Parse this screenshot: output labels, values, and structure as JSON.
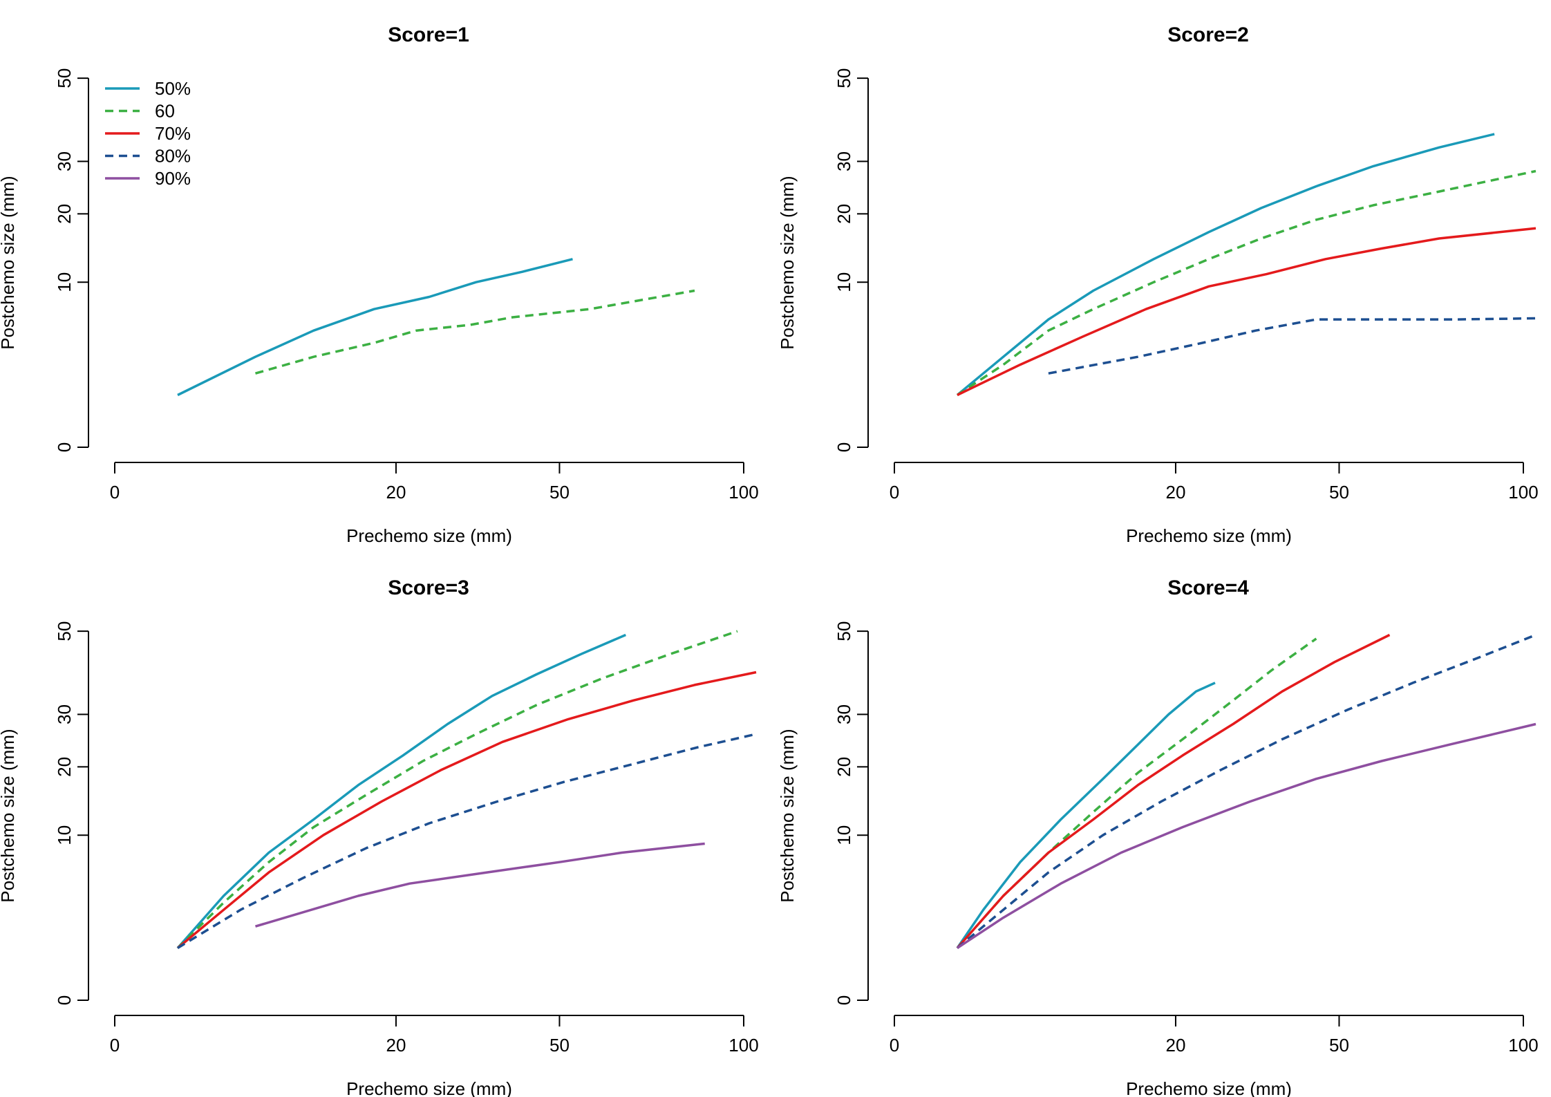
{
  "chart_data": [
    {
      "type": "line",
      "title": "Score=1",
      "xlabel": "Prechemo size (mm)",
      "ylabel": "Postchemo size (mm)",
      "xticks": [
        "0",
        "20",
        "50",
        "100"
      ],
      "yticks": [
        "0",
        "10",
        "20",
        "30",
        "50"
      ],
      "xlim": [
        0,
        100
      ],
      "ylim": [
        0,
        50
      ],
      "x_scale": "sqrt",
      "y_scale": "sqrt",
      "grid": false,
      "legend": "top-left",
      "legend_entries": [
        "50%",
        "60",
        "70%",
        "80%",
        "90%"
      ],
      "series": [
        {
          "name": "50%",
          "color": "#1a9ab8",
          "dash": false,
          "x": [
            1,
            5,
            10,
            17,
            25,
            33,
            42,
            53
          ],
          "y": [
            1,
            3,
            5,
            7,
            8.3,
            10,
            11.3,
            13
          ]
        },
        {
          "name": "60",
          "color": "#3cb043",
          "dash": true,
          "x": [
            5,
            10,
            17,
            23,
            32,
            40,
            57,
            85
          ],
          "y": [
            2,
            3,
            4,
            5,
            5.5,
            6.2,
            7,
            9
          ]
        }
      ]
    },
    {
      "type": "line",
      "title": "Score=2",
      "xlabel": "Prechemo size (mm)",
      "ylabel": "Postchemo size (mm)",
      "xticks": [
        "0",
        "20",
        "50",
        "100"
      ],
      "yticks": [
        "0",
        "10",
        "20",
        "30",
        "50"
      ],
      "xlim": [
        0,
        100
      ],
      "ylim": [
        0,
        50
      ],
      "x_scale": "sqrt",
      "y_scale": "sqrt",
      "grid": false,
      "series": [
        {
          "name": "50%",
          "color": "#1a9ab8",
          "dash": false,
          "x": [
            1,
            3,
            6,
            10,
            17,
            25,
            34,
            45,
            58,
            75,
            91
          ],
          "y": [
            1,
            3,
            6,
            9,
            13,
            17,
            21,
            25,
            29,
            33,
            36
          ]
        },
        {
          "name": "60",
          "color": "#3cb043",
          "dash": true,
          "x": [
            1,
            3,
            6,
            10,
            17,
            25,
            34,
            45,
            58,
            75,
            104
          ],
          "y": [
            1,
            2.5,
            5,
            7,
            10,
            13,
            16,
            19,
            21.5,
            24,
            28
          ]
        },
        {
          "name": "70%",
          "color": "#e41a1c",
          "dash": false,
          "x": [
            1,
            4,
            9,
            16,
            25,
            35,
            47,
            60,
            75,
            104
          ],
          "y": [
            1,
            2.5,
            4.5,
            7,
            9.5,
            11,
            13,
            14.5,
            16,
            17.6
          ]
        },
        {
          "name": "80%",
          "color": "#1d4f91",
          "dash": true,
          "x": [
            6,
            15,
            24,
            33,
            45,
            60,
            80,
            104
          ],
          "y": [
            2,
            3,
            4,
            5,
            6,
            6,
            6,
            6.1
          ]
        }
      ]
    },
    {
      "type": "line",
      "title": "Score=3",
      "xlabel": "Prechemo size (mm)",
      "ylabel": "Postchemo size (mm)",
      "xticks": [
        "0",
        "20",
        "50",
        "100"
      ],
      "yticks": [
        "0",
        "10",
        "20",
        "30",
        "50"
      ],
      "xlim": [
        0,
        100
      ],
      "ylim": [
        0,
        50
      ],
      "x_scale": "sqrt",
      "y_scale": "sqrt",
      "grid": false,
      "series": [
        {
          "name": "50%",
          "color": "#1a9ab8",
          "dash": false,
          "x": [
            1,
            3,
            6,
            10,
            15,
            21,
            28,
            36,
            45,
            55,
            66
          ],
          "y": [
            1,
            4,
            8,
            12,
            17,
            22,
            28,
            34,
            39,
            44,
            49
          ]
        },
        {
          "name": "60",
          "color": "#3cb043",
          "dash": true,
          "x": [
            1,
            3,
            6,
            10,
            16,
            24,
            33,
            45,
            60,
            78,
            98
          ],
          "y": [
            1,
            3.5,
            7,
            11,
            15.5,
            21,
            26,
            32,
            38,
            44,
            50
          ]
        },
        {
          "name": "70%",
          "color": "#e41a1c",
          "dash": false,
          "x": [
            1,
            3,
            6,
            11,
            18,
            27,
            38,
            52,
            68,
            85,
            104
          ],
          "y": [
            1,
            3,
            6,
            10,
            14.5,
            19.5,
            24.5,
            29,
            33,
            36.5,
            39.5
          ]
        },
        {
          "name": "80%",
          "color": "#1d4f91",
          "dash": true,
          "x": [
            1,
            4,
            9,
            16,
            25,
            37,
            51,
            68,
            86,
            104
          ],
          "y": [
            1,
            3,
            5.5,
            8.5,
            11.5,
            14.5,
            17.5,
            20.5,
            23.5,
            26
          ]
        },
        {
          "name": "90%",
          "color": "#8e4fa0",
          "dash": false,
          "x": [
            5,
            15,
            22,
            35,
            50,
            65,
            88
          ],
          "y": [
            2,
            4,
            5,
            6,
            7,
            8,
            9
          ]
        }
      ]
    },
    {
      "type": "line",
      "title": "Score=4",
      "xlabel": "Prechemo size (mm)",
      "ylabel": "Postchemo size (mm)",
      "xticks": [
        "0",
        "20",
        "50",
        "100"
      ],
      "yticks": [
        "0",
        "10",
        "20",
        "30",
        "50"
      ],
      "xlim": [
        0,
        100
      ],
      "ylim": [
        0,
        50
      ],
      "x_scale": "sqrt",
      "y_scale": "sqrt",
      "grid": false,
      "series": [
        {
          "name": "50%",
          "color": "#1a9ab8",
          "dash": false,
          "x": [
            1,
            2,
            4,
            7,
            11,
            15,
            19,
            23,
            26
          ],
          "y": [
            1,
            3,
            7,
            12,
            18,
            24,
            30,
            35,
            37
          ]
        },
        {
          "name": "60",
          "color": "#3cb043",
          "dash": true,
          "x": [
            1,
            3,
            6,
            10,
            15,
            21,
            28,
            36,
            45
          ],
          "y": [
            1,
            4,
            8,
            13,
            19,
            25,
            32,
            40,
            48
          ]
        },
        {
          "name": "70%",
          "color": "#e41a1c",
          "dash": false,
          "x": [
            1,
            3,
            6,
            10,
            15,
            21,
            29,
            38,
            49,
            62
          ],
          "y": [
            1,
            4,
            8,
            12,
            17,
            22,
            28,
            35,
            42,
            49
          ]
        },
        {
          "name": "80%",
          "color": "#1d4f91",
          "dash": true,
          "x": [
            1,
            3,
            6,
            11,
            18,
            27,
            38,
            52,
            68,
            86,
            104
          ],
          "y": [
            1,
            3,
            6,
            10,
            14.5,
            19.5,
            25,
            31,
            37,
            43,
            49
          ]
        },
        {
          "name": "90%",
          "color": "#8e4fa0",
          "dash": false,
          "x": [
            1,
            3,
            7,
            13,
            21,
            32,
            45,
            60,
            78,
            104
          ],
          "y": [
            1,
            2.5,
            5,
            8,
            11,
            14.5,
            18,
            21,
            24,
            28
          ]
        }
      ]
    }
  ]
}
